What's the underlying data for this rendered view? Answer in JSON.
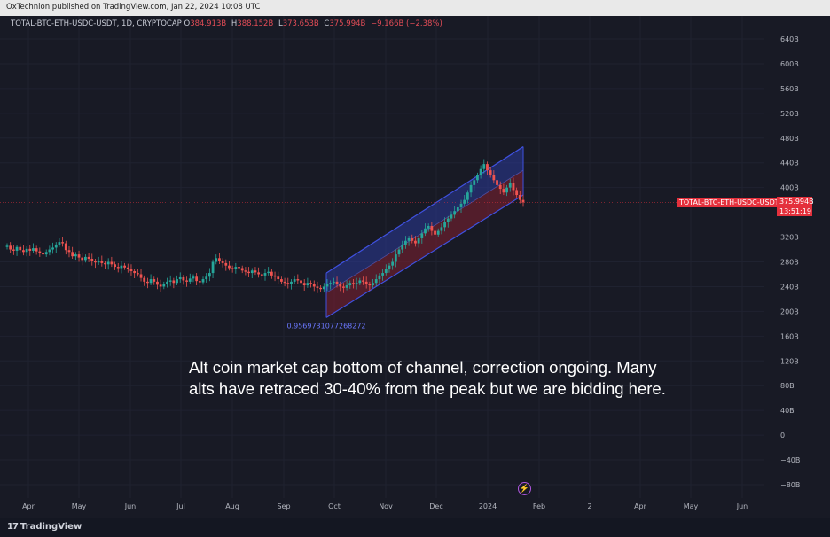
{
  "header": {
    "publisher_line": "OxTechnion published on TradingView.com, Jan 22, 2024 10:08 UTC"
  },
  "legend": {
    "symbol_line": "TOTAL-BTC-ETH-USDC-USDT, 1D, CRYPTOCAP",
    "open_label": "O",
    "open_value": "384.913B",
    "high_label": "H",
    "high_value": "388.152B",
    "low_label": "L",
    "low_value": "373.653B",
    "close_label": "C",
    "close_value": "375.994B",
    "change_value": "−9.166B (−2.38%)"
  },
  "price_scale": {
    "symbol_tag": "TOTAL-BTC-ETH-USDC-USDT",
    "last_price": "375.994B",
    "countdown": "13:51:19"
  },
  "annotation": {
    "text": "Alt coin market cap bottom of channel, correction ongoing. Many alts have retraced 30-40% from the peak but we are bidding here."
  },
  "channel_label": "0.9569731077268272",
  "footer": {
    "brand": "TradingView",
    "brand_mark": "17"
  },
  "colors": {
    "background": "#181a25",
    "up": "#26a69a",
    "down": "#ef5350",
    "channel_line": "#3f51e0",
    "channel_upper_fill": "#2b3a99",
    "channel_lower_fill": "#7a1f30",
    "last_price": "#e4303c"
  },
  "chart_data": {
    "type": "candlestick",
    "x_axis_labels": [
      "Apr",
      "May",
      "Jun",
      "Jul",
      "Aug",
      "Sep",
      "Oct",
      "Nov",
      "Dec",
      "2024",
      "Feb",
      "2",
      "Apr",
      "May",
      "Jun"
    ],
    "y_axis_labels": [
      "640B",
      "600B",
      "560B",
      "520B",
      "480B",
      "440B",
      "400B",
      "320B",
      "280B",
      "240B",
      "200B",
      "160B",
      "120B",
      "80B",
      "40B",
      "0",
      "−40B",
      "−80B"
    ],
    "y_axis_values": [
      640,
      600,
      560,
      520,
      480,
      440,
      400,
      320,
      280,
      240,
      200,
      160,
      120,
      80,
      40,
      0,
      -40,
      -80
    ],
    "ylim": [
      -90,
      660
    ],
    "unit": "B",
    "last_close": 375.994,
    "close_series": {
      "start_month_index": 3,
      "values": [
        306,
        300,
        298,
        304,
        299,
        296,
        301,
        298,
        302,
        297,
        295,
        292,
        296,
        300,
        303,
        308,
        312,
        310,
        299,
        296,
        289,
        292,
        287,
        283,
        288,
        285,
        281,
        279,
        282,
        278,
        276,
        280,
        276,
        272,
        270,
        274,
        271,
        268,
        265,
        262,
        260,
        254,
        248,
        246,
        252,
        248,
        243,
        240,
        244,
        248,
        250,
        246,
        252,
        255,
        250,
        248,
        253,
        256,
        249,
        247,
        252,
        256,
        262,
        280,
        286,
        282,
        278,
        274,
        270,
        268,
        272,
        270,
        266,
        264,
        262,
        266,
        263,
        260,
        258,
        262,
        264,
        258,
        256,
        252,
        248,
        246,
        244,
        248,
        252,
        250,
        246,
        242,
        246,
        244,
        240,
        238,
        236,
        240,
        244,
        246,
        248,
        244,
        240,
        238,
        242,
        246,
        244,
        246,
        250,
        248,
        244,
        242,
        246,
        252,
        258,
        262,
        268,
        274,
        280,
        292,
        300,
        308,
        314,
        318,
        314,
        310,
        318,
        326,
        334,
        338,
        330,
        324,
        330,
        336,
        344,
        350,
        356,
        362,
        368,
        374,
        380,
        392,
        404,
        412,
        420,
        430,
        438,
        428,
        420,
        412,
        404,
        398,
        392,
        400,
        408,
        396,
        388,
        380,
        376
      ]
    },
    "channel": {
      "label": "0.9569731077268272",
      "start_date_label": "Oct",
      "end_date_label": "Jan",
      "upper_start": 262,
      "upper_end": 466,
      "mid_start": 230,
      "mid_end": 428,
      "lower_start": 190,
      "lower_end": 388
    }
  }
}
